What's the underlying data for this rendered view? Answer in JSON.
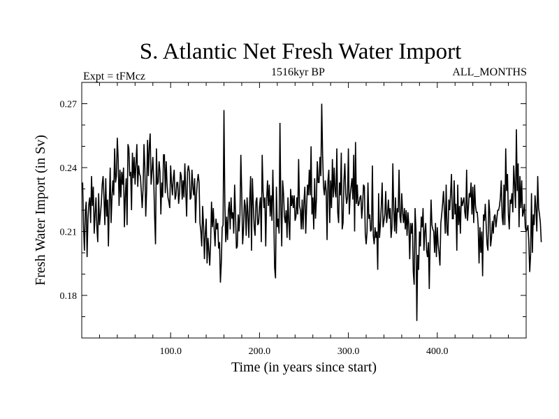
{
  "chart_data": {
    "type": "line",
    "title": "S. Atlantic Net Fresh Water Import",
    "subtitle_left": "Expt = tFMcz",
    "subtitle_center": "1516kyr BP",
    "subtitle_right": "ALL_MONTHS",
    "xlabel": "Time (in years since start)",
    "ylabel": "Fresh Water Import (in Sv)",
    "xlim": [
      0,
      500
    ],
    "ylim": [
      0.16,
      0.28
    ],
    "x_ticks": [
      100,
      200,
      300,
      400
    ],
    "x_tick_labels": [
      "100.0",
      "200.0",
      "300.0",
      "400.0"
    ],
    "y_ticks": [
      0.18,
      0.21,
      0.24,
      0.27
    ],
    "y_tick_labels": [
      "0.18",
      "0.21",
      "0.24",
      "0.27"
    ],
    "series": [
      {
        "name": "Fresh Water Import",
        "x_start": 1,
        "x_step": 1,
        "values": [
          0.233,
          0.212,
          0.201,
          0.219,
          0.224,
          0.198,
          0.216,
          0.223,
          0.226,
          0.214,
          0.236,
          0.222,
          0.231,
          0.209,
          0.218,
          0.226,
          0.212,
          0.205,
          0.228,
          0.213,
          0.218,
          0.223,
          0.232,
          0.236,
          0.226,
          0.213,
          0.235,
          0.217,
          0.225,
          0.203,
          0.223,
          0.24,
          0.214,
          0.226,
          0.234,
          0.227,
          0.249,
          0.233,
          0.236,
          0.254,
          0.244,
          0.222,
          0.239,
          0.226,
          0.238,
          0.232,
          0.24,
          0.212,
          0.227,
          0.235,
          0.213,
          0.251,
          0.249,
          0.236,
          0.238,
          0.22,
          0.247,
          0.235,
          0.245,
          0.232,
          0.242,
          0.251,
          0.231,
          0.241,
          0.237,
          0.236,
          0.229,
          0.221,
          0.23,
          0.251,
          0.24,
          0.217,
          0.229,
          0.253,
          0.236,
          0.25,
          0.256,
          0.232,
          0.238,
          0.245,
          0.234,
          0.217,
          0.204,
          0.249,
          0.232,
          0.233,
          0.243,
          0.238,
          0.218,
          0.233,
          0.226,
          0.246,
          0.246,
          0.228,
          0.243,
          0.232,
          0.226,
          0.224,
          0.221,
          0.241,
          0.233,
          0.227,
          0.235,
          0.239,
          0.225,
          0.227,
          0.233,
          0.233,
          0.223,
          0.228,
          0.238,
          0.236,
          0.225,
          0.234,
          0.226,
          0.242,
          0.229,
          0.217,
          0.238,
          0.241,
          0.238,
          0.225,
          0.226,
          0.239,
          0.231,
          0.227,
          0.235,
          0.214,
          0.227,
          0.233,
          0.237,
          0.233,
          0.214,
          0.21,
          0.203,
          0.222,
          0.213,
          0.197,
          0.209,
          0.216,
          0.195,
          0.207,
          0.201,
          0.194,
          0.205,
          0.224,
          0.212,
          0.221,
          0.211,
          0.203,
          0.216,
          0.211,
          0.214,
          0.202,
          0.205,
          0.186,
          0.195,
          0.212,
          0.213,
          0.267,
          0.223,
          0.205,
          0.217,
          0.206,
          0.22,
          0.224,
          0.211,
          0.226,
          0.216,
          0.219,
          0.209,
          0.232,
          0.218,
          0.202,
          0.203,
          0.218,
          0.21,
          0.218,
          0.246,
          0.228,
          0.204,
          0.211,
          0.225,
          0.222,
          0.208,
          0.226,
          0.218,
          0.207,
          0.225,
          0.236,
          0.201,
          0.235,
          0.223,
          0.212,
          0.208,
          0.224,
          0.226,
          0.213,
          0.214,
          0.222,
          0.226,
          0.205,
          0.246,
          0.229,
          0.221,
          0.226,
          0.203,
          0.225,
          0.234,
          0.222,
          0.232,
          0.217,
          0.227,
          0.215,
          0.239,
          0.219,
          0.193,
          0.188,
          0.231,
          0.212,
          0.216,
          0.209,
          0.261,
          0.222,
          0.203,
          0.234,
          0.228,
          0.217,
          0.214,
          0.22,
          0.207,
          0.226,
          0.214,
          0.206,
          0.23,
          0.222,
          0.227,
          0.221,
          0.227,
          0.215,
          0.217,
          0.226,
          0.218,
          0.244,
          0.222,
          0.22,
          0.211,
          0.225,
          0.211,
          0.224,
          0.231,
          0.209,
          0.222,
          0.232,
          0.227,
          0.239,
          0.227,
          0.25,
          0.218,
          0.226,
          0.211,
          0.235,
          0.216,
          0.225,
          0.243,
          0.233,
          0.233,
          0.245,
          0.236,
          0.27,
          0.246,
          0.231,
          0.227,
          0.234,
          0.229,
          0.206,
          0.234,
          0.239,
          0.214,
          0.234,
          0.221,
          0.244,
          0.226,
          0.24,
          0.229,
          0.226,
          0.249,
          0.219,
          0.214,
          0.233,
          0.227,
          0.247,
          0.211,
          0.214,
          0.234,
          0.242,
          0.228,
          0.223,
          0.226,
          0.249,
          0.218,
          0.227,
          0.231,
          0.235,
          0.225,
          0.246,
          0.21,
          0.252,
          0.223,
          0.232,
          0.222,
          0.223,
          0.226,
          0.227,
          0.216,
          0.222,
          0.232,
          0.231,
          0.209,
          0.204,
          0.21,
          0.233,
          0.216,
          0.218,
          0.21,
          0.211,
          0.241,
          0.208,
          0.204,
          0.212,
          0.207,
          0.21,
          0.192,
          0.228,
          0.207,
          0.213,
          0.222,
          0.233,
          0.212,
          0.215,
          0.218,
          0.229,
          0.214,
          0.218,
          0.225,
          0.216,
          0.221,
          0.207,
          0.212,
          0.242,
          0.22,
          0.21,
          0.226,
          0.209,
          0.221,
          0.219,
          0.239,
          0.217,
          0.214,
          0.228,
          0.219,
          0.214,
          0.221,
          0.211,
          0.22,
          0.208,
          0.219,
          0.213,
          0.197,
          0.214,
          0.209,
          0.214,
          0.191,
          0.185,
          0.221,
          0.211,
          0.168,
          0.199,
          0.192,
          0.21,
          0.203,
          0.217,
          0.212,
          0.221,
          0.201,
          0.21,
          0.214,
          0.201,
          0.198,
          0.205,
          0.183,
          0.207,
          0.225,
          0.213,
          0.211,
          0.21,
          0.2,
          0.214,
          0.198,
          0.212,
          0.204,
          0.2,
          0.194,
          0.214,
          0.218,
          0.223,
          0.229,
          0.22,
          0.209,
          0.232,
          0.21,
          0.208,
          0.225,
          0.22,
          0.228,
          0.237,
          0.216,
          0.216,
          0.234,
          0.218,
          0.223,
          0.201,
          0.232,
          0.213,
          0.222,
          0.209,
          0.226,
          0.222,
          0.224,
          0.226,
          0.219,
          0.216,
          0.239,
          0.215,
          0.221,
          0.228,
          0.226,
          0.233,
          0.218,
          0.231,
          0.214,
          0.232,
          0.222,
          0.219,
          0.219,
          0.213,
          0.195,
          0.212,
          0.2,
          0.21,
          0.189,
          0.218,
          0.215,
          0.223,
          0.213,
          0.204,
          0.201,
          0.225,
          0.219,
          0.203,
          0.207,
          0.215,
          0.209,
          0.217,
          0.218,
          0.212,
          0.216,
          0.22,
          0.22,
          0.222,
          0.226,
          0.234,
          0.217,
          0.213,
          0.232,
          0.213,
          0.249,
          0.229,
          0.237,
          0.218,
          0.211,
          0.225,
          0.223,
          0.228,
          0.219,
          0.241,
          0.232,
          0.221,
          0.258,
          0.229,
          0.242,
          0.212,
          0.236,
          0.221,
          0.234,
          0.217,
          0.219,
          0.223,
          0.212,
          0.21,
          0.211,
          0.213,
          0.205,
          0.191,
          0.199,
          0.228,
          0.2,
          0.218,
          0.213,
          0.227,
          0.221,
          0.21,
          0.236,
          0.221,
          0.218,
          0.214,
          0.205
        ]
      }
    ]
  }
}
